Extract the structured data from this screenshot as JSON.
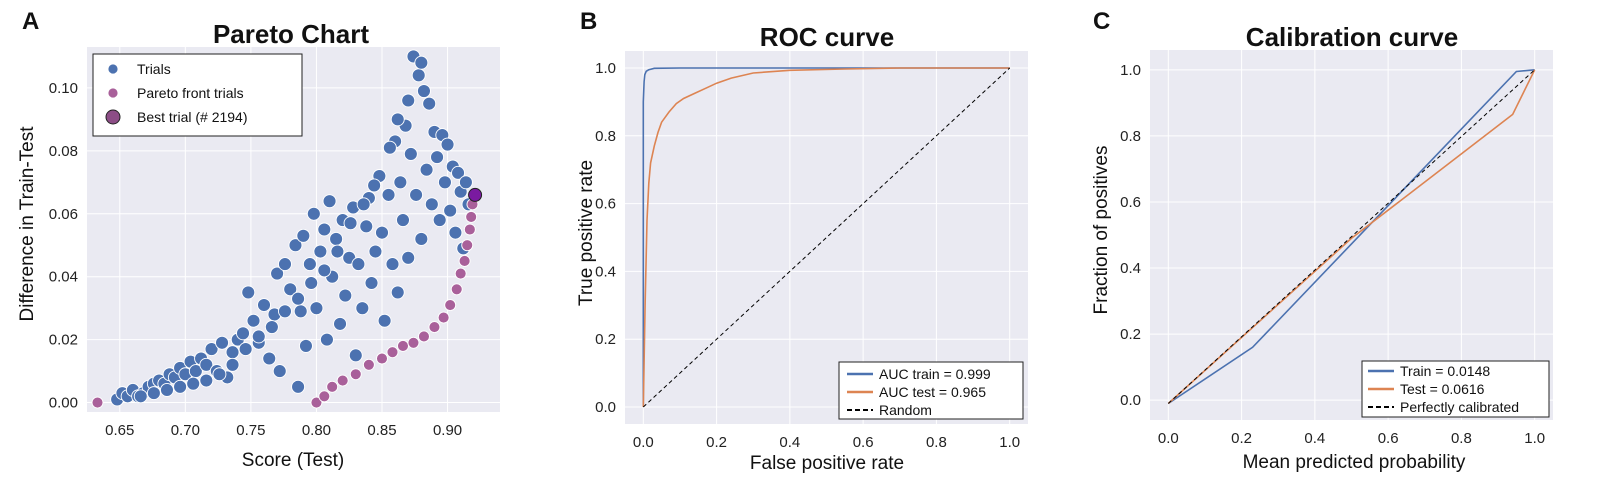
{
  "colors": {
    "background": "#eaeaf2",
    "grid": "#ffffff",
    "blue": "#4c72b0",
    "orange": "#dd8452",
    "pareto": "#a9609a",
    "best": "#7a1aa0",
    "random": "#000000"
  },
  "chart_data": [
    {
      "type": "scatter",
      "panel_letter": "A",
      "title": "Pareto Chart",
      "xlabel": "Score (Test)",
      "ylabel": "Difference in Train-Test",
      "xlim": [
        0.625,
        0.94
      ],
      "ylim": [
        -0.003,
        0.113
      ],
      "x_ticks": [
        0.65,
        0.7,
        0.75,
        0.8,
        0.85,
        0.9
      ],
      "x_tick_labels": [
        "0.65",
        "0.70",
        "0.75",
        "0.80",
        "0.85",
        "0.90"
      ],
      "y_ticks": [
        0.0,
        0.02,
        0.04,
        0.06,
        0.08,
        0.1
      ],
      "y_tick_labels": [
        "0.00",
        "0.02",
        "0.04",
        "0.06",
        "0.08",
        "0.10"
      ],
      "grid": true,
      "legend_position": "top-left",
      "legend": [
        "Trials",
        "Pareto front trials",
        "Best trial (# 2194)"
      ],
      "series": [
        {
          "name": "Trials",
          "points": [
            [
              0.648,
              0.001
            ],
            [
              0.652,
              0.003
            ],
            [
              0.656,
              0.002
            ],
            [
              0.66,
              0.004
            ],
            [
              0.664,
              0.002
            ],
            [
              0.668,
              0.003
            ],
            [
              0.672,
              0.005
            ],
            [
              0.676,
              0.006
            ],
            [
              0.68,
              0.007
            ],
            [
              0.684,
              0.006
            ],
            [
              0.688,
              0.009
            ],
            [
              0.692,
              0.008
            ],
            [
              0.696,
              0.011
            ],
            [
              0.7,
              0.009
            ],
            [
              0.704,
              0.013
            ],
            [
              0.708,
              0.01
            ],
            [
              0.712,
              0.014
            ],
            [
              0.716,
              0.012
            ],
            [
              0.72,
              0.017
            ],
            [
              0.724,
              0.01
            ],
            [
              0.728,
              0.019
            ],
            [
              0.732,
              0.008
            ],
            [
              0.736,
              0.016
            ],
            [
              0.74,
              0.02
            ],
            [
              0.744,
              0.022
            ],
            [
              0.748,
              0.035
            ],
            [
              0.752,
              0.026
            ],
            [
              0.756,
              0.019
            ],
            [
              0.76,
              0.031
            ],
            [
              0.764,
              0.014
            ],
            [
              0.768,
              0.028
            ],
            [
              0.77,
              0.041
            ],
            [
              0.772,
              0.01
            ],
            [
              0.776,
              0.044
            ],
            [
              0.78,
              0.036
            ],
            [
              0.784,
              0.05
            ],
            [
              0.786,
              0.005
            ],
            [
              0.788,
              0.029
            ],
            [
              0.79,
              0.053
            ],
            [
              0.792,
              0.018
            ],
            [
              0.795,
              0.044
            ],
            [
              0.798,
              0.06
            ],
            [
              0.8,
              0.03
            ],
            [
              0.803,
              0.048
            ],
            [
              0.806,
              0.055
            ],
            [
              0.808,
              0.02
            ],
            [
              0.81,
              0.064
            ],
            [
              0.812,
              0.04
            ],
            [
              0.815,
              0.052
            ],
            [
              0.818,
              0.025
            ],
            [
              0.82,
              0.058
            ],
            [
              0.822,
              0.034
            ],
            [
              0.825,
              0.046
            ],
            [
              0.828,
              0.062
            ],
            [
              0.83,
              0.015
            ],
            [
              0.832,
              0.044
            ],
            [
              0.835,
              0.03
            ],
            [
              0.838,
              0.056
            ],
            [
              0.84,
              0.065
            ],
            [
              0.842,
              0.038
            ],
            [
              0.845,
              0.048
            ],
            [
              0.848,
              0.072
            ],
            [
              0.85,
              0.054
            ],
            [
              0.852,
              0.026
            ],
            [
              0.855,
              0.066
            ],
            [
              0.858,
              0.044
            ],
            [
              0.86,
              0.083
            ],
            [
              0.862,
              0.035
            ],
            [
              0.864,
              0.07
            ],
            [
              0.866,
              0.058
            ],
            [
              0.868,
              0.088
            ],
            [
              0.87,
              0.046
            ],
            [
              0.872,
              0.079
            ],
            [
              0.874,
              0.11
            ],
            [
              0.876,
              0.066
            ],
            [
              0.878,
              0.104
            ],
            [
              0.88,
              0.052
            ],
            [
              0.882,
              0.099
            ],
            [
              0.884,
              0.074
            ],
            [
              0.886,
              0.095
            ],
            [
              0.888,
              0.063
            ],
            [
              0.89,
              0.086
            ],
            [
              0.892,
              0.078
            ],
            [
              0.894,
              0.058
            ],
            [
              0.896,
              0.085
            ],
            [
              0.898,
              0.07
            ],
            [
              0.9,
              0.082
            ],
            [
              0.902,
              0.061
            ],
            [
              0.904,
              0.075
            ],
            [
              0.906,
              0.054
            ],
            [
              0.908,
              0.073
            ],
            [
              0.91,
              0.067
            ],
            [
              0.912,
              0.049
            ],
            [
              0.914,
              0.07
            ],
            [
              0.916,
              0.063
            ],
            [
              0.88,
              0.108
            ],
            [
              0.87,
              0.096
            ],
            [
              0.862,
              0.09
            ],
            [
              0.856,
              0.081
            ],
            [
              0.844,
              0.069
            ],
            [
              0.836,
              0.063
            ],
            [
              0.826,
              0.057
            ],
            [
              0.816,
              0.048
            ],
            [
              0.806,
              0.042
            ],
            [
              0.796,
              0.038
            ],
            [
              0.786,
              0.033
            ],
            [
              0.776,
              0.029
            ],
            [
              0.766,
              0.024
            ],
            [
              0.756,
              0.021
            ],
            [
              0.746,
              0.017
            ],
            [
              0.736,
              0.012
            ],
            [
              0.726,
              0.009
            ],
            [
              0.716,
              0.007
            ],
            [
              0.706,
              0.006
            ],
            [
              0.696,
              0.005
            ],
            [
              0.686,
              0.004
            ],
            [
              0.676,
              0.003
            ],
            [
              0.666,
              0.002
            ]
          ]
        },
        {
          "name": "Pareto front trials",
          "points": [
            [
              0.633,
              0.0
            ],
            [
              0.8,
              0.0
            ],
            [
              0.806,
              0.002
            ],
            [
              0.812,
              0.005
            ],
            [
              0.82,
              0.007
            ],
            [
              0.83,
              0.009
            ],
            [
              0.84,
              0.012
            ],
            [
              0.85,
              0.014
            ],
            [
              0.858,
              0.016
            ],
            [
              0.866,
              0.018
            ],
            [
              0.874,
              0.019
            ],
            [
              0.882,
              0.021
            ],
            [
              0.89,
              0.024
            ],
            [
              0.897,
              0.027
            ],
            [
              0.902,
              0.031
            ],
            [
              0.907,
              0.036
            ],
            [
              0.91,
              0.041
            ],
            [
              0.913,
              0.045
            ],
            [
              0.915,
              0.05
            ],
            [
              0.917,
              0.055
            ],
            [
              0.918,
              0.059
            ],
            [
              0.919,
              0.063
            ]
          ]
        },
        {
          "name": "Best trial (# 2194)",
          "points": [
            [
              0.921,
              0.066
            ]
          ]
        }
      ]
    },
    {
      "type": "line",
      "panel_letter": "B",
      "title": "ROC curve",
      "xlabel": "False positive rate",
      "ylabel": "True positive rate",
      "xlim": [
        -0.05,
        1.05
      ],
      "ylim": [
        -0.05,
        1.05
      ],
      "x_ticks": [
        0.0,
        0.2,
        0.4,
        0.6,
        0.8,
        1.0
      ],
      "x_tick_labels": [
        "0.0",
        "0.2",
        "0.4",
        "0.6",
        "0.8",
        "1.0"
      ],
      "y_ticks": [
        0.0,
        0.2,
        0.4,
        0.6,
        0.8,
        1.0
      ],
      "y_tick_labels": [
        "0.0",
        "0.2",
        "0.4",
        "0.6",
        "0.8",
        "1.0"
      ],
      "grid": true,
      "legend_position": "bottom-right",
      "series": [
        {
          "name": "AUC train = 0.999",
          "color": "#4c72b0",
          "style": "solid",
          "x": [
            0.0,
            0.0,
            0.002,
            0.004,
            0.008,
            0.015,
            0.03,
            0.1,
            0.5,
            1.0
          ],
          "y": [
            0.0,
            0.9,
            0.96,
            0.98,
            0.99,
            0.995,
            0.999,
            1.0,
            1.0,
            1.0
          ]
        },
        {
          "name": "AUC test = 0.965",
          "color": "#dd8452",
          "style": "solid",
          "x": [
            0.0,
            0.005,
            0.01,
            0.015,
            0.02,
            0.03,
            0.04,
            0.05,
            0.07,
            0.09,
            0.11,
            0.14,
            0.17,
            0.2,
            0.24,
            0.3,
            0.4,
            0.55,
            0.7,
            1.0
          ],
          "y": [
            0.0,
            0.3,
            0.55,
            0.66,
            0.72,
            0.77,
            0.81,
            0.84,
            0.87,
            0.895,
            0.91,
            0.925,
            0.94,
            0.955,
            0.97,
            0.985,
            0.993,
            0.997,
            1.0,
            1.0
          ]
        },
        {
          "name": "Random",
          "color": "#000000",
          "style": "dashed",
          "x": [
            0.0,
            1.0
          ],
          "y": [
            0.0,
            1.0
          ]
        }
      ]
    },
    {
      "type": "line",
      "panel_letter": "C",
      "title": "Calibration curve",
      "xlabel": "Mean predicted probability",
      "ylabel": "Fraction of positives",
      "xlim": [
        -0.05,
        1.05
      ],
      "ylim": [
        -0.06,
        1.06
      ],
      "x_ticks": [
        0.0,
        0.2,
        0.4,
        0.6,
        0.8,
        1.0
      ],
      "x_tick_labels": [
        "0.0",
        "0.2",
        "0.4",
        "0.6",
        "0.8",
        "1.0"
      ],
      "y_ticks": [
        0.0,
        0.2,
        0.4,
        0.6,
        0.8,
        1.0
      ],
      "y_tick_labels": [
        "0.0",
        "0.2",
        "0.4",
        "0.6",
        "0.8",
        "1.0"
      ],
      "grid": true,
      "legend_position": "bottom-right",
      "series": [
        {
          "name": "Train = 0.0148",
          "color": "#4c72b0",
          "style": "solid",
          "x": [
            0.0,
            0.23,
            0.95,
            1.0
          ],
          "y": [
            -0.01,
            0.16,
            0.995,
            1.0
          ]
        },
        {
          "name": "Test = 0.0616",
          "color": "#dd8452",
          "style": "solid",
          "x": [
            0.0,
            0.5,
            0.94,
            1.0
          ],
          "y": [
            -0.01,
            0.49,
            0.865,
            1.0
          ]
        },
        {
          "name": "Perfectly calibrated",
          "color": "#000000",
          "style": "dashed",
          "x": [
            0.0,
            1.0
          ],
          "y": [
            -0.01,
            1.0
          ]
        }
      ]
    }
  ]
}
